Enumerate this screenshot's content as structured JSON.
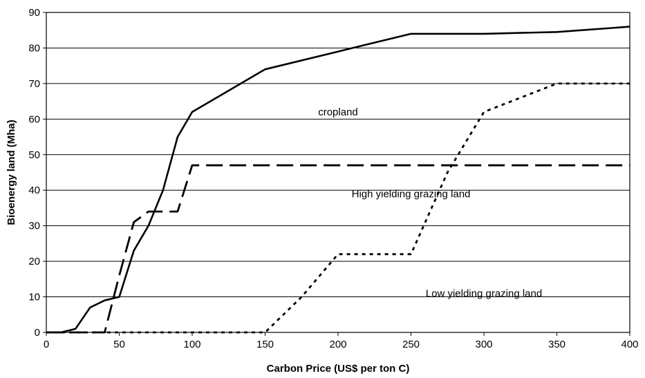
{
  "chart_data": {
    "type": "line",
    "title": "",
    "xlabel": "Carbon Price (US$ per ton C)",
    "ylabel": "Bioenergy land (Mha)",
    "xlim": [
      0,
      400
    ],
    "ylim": [
      0,
      90
    ],
    "xticks": [
      0,
      50,
      100,
      150,
      200,
      250,
      300,
      350,
      400
    ],
    "yticks": [
      0,
      10,
      20,
      30,
      40,
      50,
      60,
      70,
      80,
      90
    ],
    "grid": "horizontal",
    "series": [
      {
        "label": "cropland",
        "style": "solid",
        "label_at": [
          200,
          62
        ],
        "points": [
          [
            0,
            0
          ],
          [
            10,
            0
          ],
          [
            20,
            1
          ],
          [
            30,
            7
          ],
          [
            40,
            9
          ],
          [
            50,
            10
          ],
          [
            60,
            23
          ],
          [
            70,
            30
          ],
          [
            80,
            40
          ],
          [
            90,
            55
          ],
          [
            100,
            62
          ],
          [
            150,
            74
          ],
          [
            200,
            79
          ],
          [
            210,
            80
          ],
          [
            250,
            84
          ],
          [
            300,
            84
          ],
          [
            350,
            84.5
          ],
          [
            400,
            86
          ]
        ]
      },
      {
        "label": "High yielding grazing land",
        "style": "dashed",
        "label_at": [
          250,
          39
        ],
        "points": [
          [
            0,
            0
          ],
          [
            40,
            0
          ],
          [
            50,
            16
          ],
          [
            60,
            31
          ],
          [
            70,
            34
          ],
          [
            90,
            34
          ],
          [
            100,
            47
          ],
          [
            400,
            47
          ]
        ]
      },
      {
        "label": "Low yielding grazing land",
        "style": "dotted",
        "label_at": [
          300,
          11
        ],
        "points": [
          [
            0,
            0
          ],
          [
            150,
            0
          ],
          [
            175,
            10
          ],
          [
            200,
            22
          ],
          [
            250,
            22
          ],
          [
            275,
            45
          ],
          [
            300,
            62
          ],
          [
            350,
            70
          ],
          [
            400,
            70
          ]
        ]
      }
    ]
  }
}
